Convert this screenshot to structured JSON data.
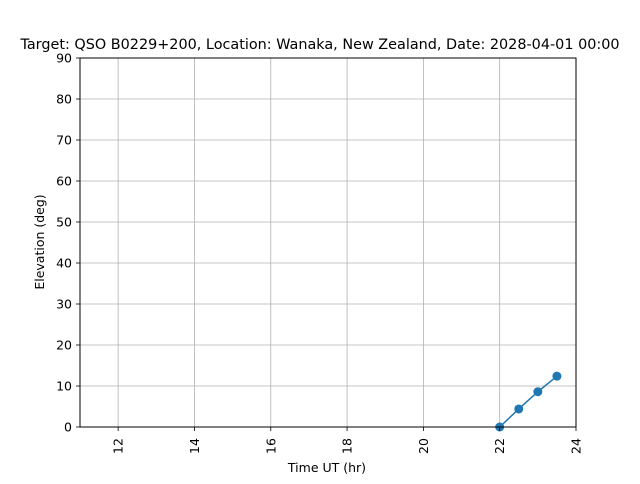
{
  "chart_data": {
    "type": "line",
    "title": "Target: QSO B0229+200,  Location: Wanaka, New Zealand, Date: 2028-04-01 00:00",
    "xlabel": "Time UT (hr)",
    "ylabel": "Elevation (deg)",
    "xlim": [
      11.0,
      24.0
    ],
    "ylim": [
      0,
      90
    ],
    "xticks": [
      12,
      14,
      16,
      18,
      20,
      22,
      24
    ],
    "yticks": [
      0,
      10,
      20,
      30,
      40,
      50,
      60,
      70,
      80,
      90
    ],
    "xtick_rotation": "vertical",
    "grid": true,
    "series": [
      {
        "x": [
          22.0,
          22.5,
          23.0,
          23.5
        ],
        "y": [
          0.0,
          4.4,
          8.6,
          12.4
        ],
        "color": "#1f77b4",
        "marker": "circle"
      }
    ]
  }
}
